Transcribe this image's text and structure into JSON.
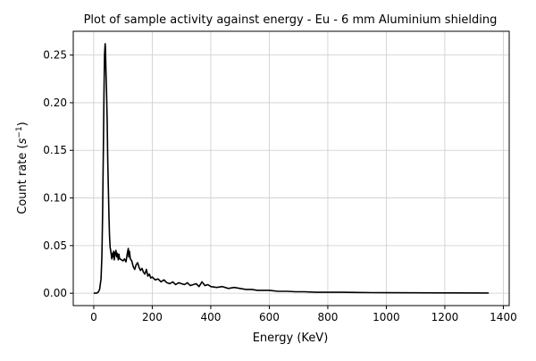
{
  "chart_data": {
    "type": "line",
    "title": "Plot of sample activity against energy - Eu - 6 mm Aluminium shielding",
    "xlabel": "Energy (KeV)",
    "ylabel_main": "Count rate (",
    "ylabel_sym": "s",
    "ylabel_exp": "−1",
    "ylabel_close": ")",
    "xlim": [
      -70,
      1420
    ],
    "ylim": [
      -0.013,
      0.275
    ],
    "grid": true,
    "xticks": [
      0,
      200,
      400,
      600,
      800,
      1000,
      1200,
      1400
    ],
    "yticks": [
      0.0,
      0.05,
      0.1,
      0.15,
      0.2,
      0.25
    ],
    "xtick_labels": [
      "0",
      "200",
      "400",
      "600",
      "800",
      "1000",
      "1200",
      "1400"
    ],
    "ytick_labels": [
      "0.00",
      "0.05",
      "0.10",
      "0.15",
      "0.20",
      "0.25"
    ],
    "series": [
      {
        "color": "#000000",
        "x": [
          0,
          10,
          15,
          20,
          25,
          28,
          30,
          33,
          35,
          37,
          39,
          40,
          42,
          44,
          46,
          48,
          50,
          52,
          54,
          56,
          58,
          60,
          62,
          64,
          66,
          68,
          70,
          72,
          74,
          76,
          78,
          80,
          82,
          84,
          86,
          88,
          90,
          95,
          100,
          105,
          110,
          115,
          118,
          120,
          122,
          125,
          130,
          135,
          140,
          145,
          150,
          155,
          160,
          165,
          170,
          175,
          180,
          185,
          190,
          195,
          200,
          210,
          220,
          230,
          240,
          250,
          260,
          270,
          280,
          290,
          300,
          310,
          320,
          330,
          340,
          350,
          360,
          370,
          380,
          390,
          400,
          420,
          440,
          460,
          480,
          500,
          520,
          540,
          560,
          580,
          600,
          630,
          660,
          690,
          720,
          760,
          800,
          850,
          900,
          950,
          1000,
          1100,
          1200,
          1350
        ],
        "y": [
          0.0,
          0.0,
          0.001,
          0.004,
          0.015,
          0.04,
          0.08,
          0.15,
          0.21,
          0.25,
          0.262,
          0.258,
          0.23,
          0.21,
          0.18,
          0.14,
          0.11,
          0.08,
          0.06,
          0.048,
          0.045,
          0.04,
          0.036,
          0.042,
          0.038,
          0.044,
          0.035,
          0.043,
          0.04,
          0.045,
          0.038,
          0.042,
          0.04,
          0.035,
          0.041,
          0.037,
          0.036,
          0.035,
          0.034,
          0.036,
          0.033,
          0.042,
          0.047,
          0.038,
          0.044,
          0.036,
          0.034,
          0.028,
          0.025,
          0.03,
          0.032,
          0.027,
          0.024,
          0.026,
          0.022,
          0.02,
          0.025,
          0.018,
          0.02,
          0.016,
          0.017,
          0.014,
          0.015,
          0.012,
          0.014,
          0.011,
          0.01,
          0.012,
          0.009,
          0.011,
          0.01,
          0.009,
          0.011,
          0.008,
          0.009,
          0.01,
          0.007,
          0.012,
          0.008,
          0.009,
          0.007,
          0.006,
          0.007,
          0.005,
          0.006,
          0.005,
          0.004,
          0.004,
          0.003,
          0.003,
          0.003,
          0.002,
          0.002,
          0.0015,
          0.0015,
          0.001,
          0.001,
          0.001,
          0.0008,
          0.0006,
          0.0005,
          0.0004,
          0.0003,
          0.0002
        ]
      }
    ]
  }
}
